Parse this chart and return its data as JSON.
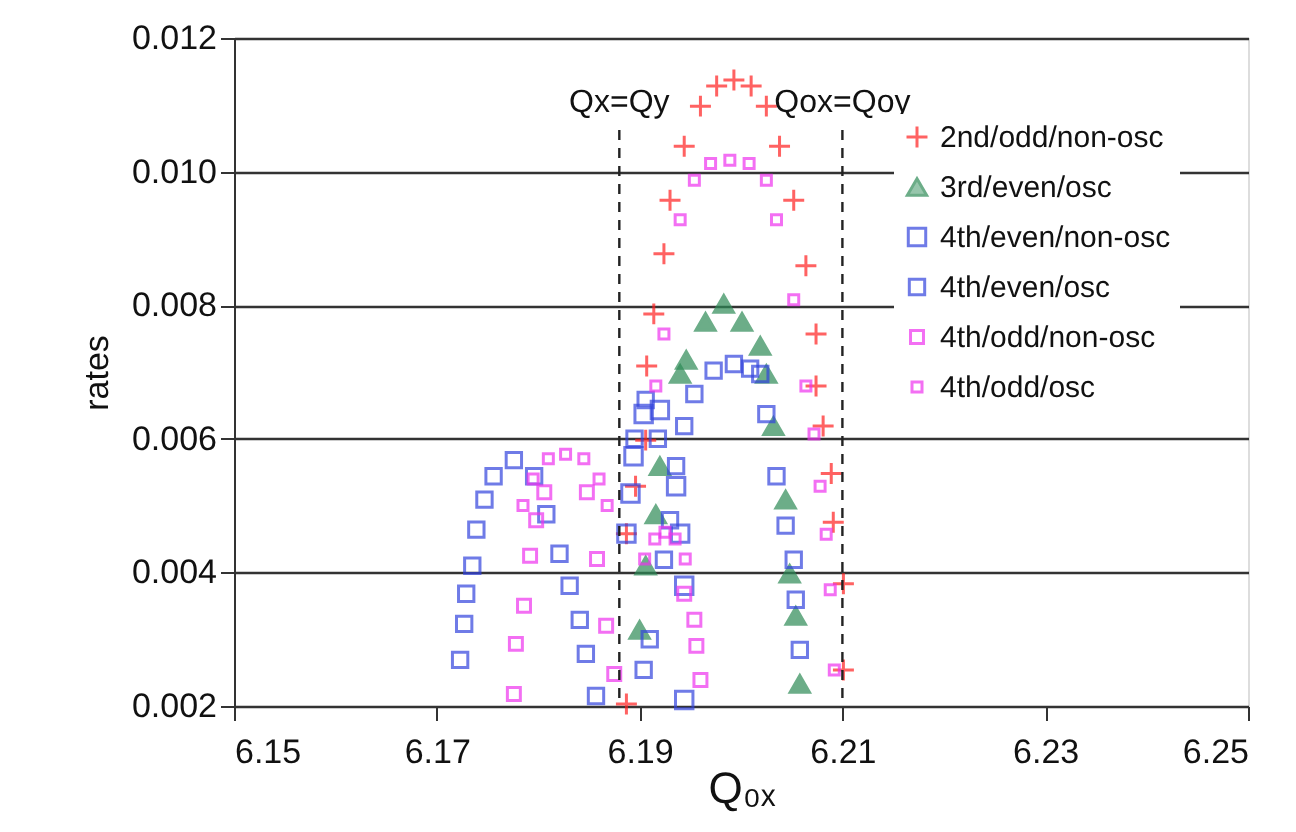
{
  "chart_data": {
    "type": "scatter",
    "xlabel": "Q₀ₓ",
    "ylabel": "rates",
    "xlim": [
      6.15,
      6.25
    ],
    "xticks": [
      6.15,
      6.17,
      6.19,
      6.21,
      6.23,
      6.25
    ],
    "ylim": [
      0.002,
      0.012
    ],
    "yticks": [
      0.002,
      0.004,
      0.006,
      0.008,
      {
        "value": 0.01,
        "label": "0.010"
      },
      0.012
    ],
    "grid": "y",
    "legend": "right",
    "ref_lines": [
      {
        "axis": "x",
        "value": 6.188,
        "label": "Qx=Qy",
        "line_style": "dashed"
      },
      {
        "axis": "x",
        "value": 6.21,
        "label": "Qox=Qoy",
        "line_style": "dashed"
      }
    ],
    "series": [
      {
        "name": "2nd/odd/non-osc",
        "color": "#ff2020",
        "marker": "cross",
        "x": [
          6.1887,
          6.1887,
          6.1896,
          6.1906,
          6.1907,
          6.1914,
          6.1924,
          6.193,
          6.1944,
          6.196,
          6.1976,
          6.1993,
          6.201,
          6.2025,
          6.2038,
          6.2052,
          6.2064,
          6.2074,
          6.2074,
          6.2081,
          6.2089,
          6.2091,
          6.2101,
          6.2101
        ],
        "values": [
          0.00203,
          0.00458,
          0.00529,
          0.00598,
          0.00709,
          0.00787,
          0.00877,
          0.00957,
          0.01038,
          0.01098,
          0.01128,
          0.01137,
          0.01128,
          0.01098,
          0.01038,
          0.00957,
          0.00859,
          0.00757,
          0.00679,
          0.00619,
          0.00548,
          0.00475,
          0.00383,
          0.00254
        ]
      },
      {
        "name": "3rd/even/osc",
        "color": "#2e8b57",
        "marker": "triangle",
        "x": [
          6.19,
          6.1906,
          6.1916,
          6.192,
          6.194,
          6.1946,
          6.1965,
          6.1983,
          6.2001,
          6.2019,
          6.2025,
          6.2032,
          6.2044,
          6.2048,
          6.2054,
          6.2058
        ],
        "values": [
          0.00314,
          0.0041,
          0.00487,
          0.00559,
          0.00697,
          0.00718,
          0.00775,
          0.00802,
          0.00775,
          0.00739,
          0.00697,
          0.00619,
          0.00509,
          0.00398,
          0.00335,
          0.00233
        ]
      },
      {
        "name": "4th/even/non-osc",
        "color": "#3344dd",
        "marker": "square",
        "x": [
          6.1887,
          6.1891,
          6.1894,
          6.1904,
          6.192,
          6.1936,
          6.194,
          6.1944,
          6.1944
        ],
        "values": [
          0.00458,
          0.00518,
          0.00574,
          0.00637,
          0.00643,
          0.00529,
          0.00458,
          0.0038,
          0.00209
        ]
      },
      {
        "name": "4th/even/osc",
        "color": "#3344dd",
        "marker": "square",
        "x": [
          6.1723,
          6.1727,
          6.1729,
          6.1735,
          6.1739,
          6.1747,
          6.1756,
          6.1776,
          6.1796,
          6.1808,
          6.1821,
          6.1831,
          6.1841,
          6.1847,
          6.1857,
          6.1895,
          6.1906,
          6.1918,
          6.1904,
          6.191,
          6.1924,
          6.193,
          6.1936,
          6.1944,
          6.1954,
          6.1973,
          6.1993,
          6.2009,
          6.2019,
          6.2025,
          6.2035,
          6.2044,
          6.2052,
          6.2054,
          6.2058
        ],
        "values": [
          0.00269,
          0.00323,
          0.00368,
          0.0041,
          0.00464,
          0.00509,
          0.00544,
          0.00568,
          0.00544,
          0.00487,
          0.00428,
          0.0038,
          0.00329,
          0.00278,
          0.00215,
          0.006,
          0.00658,
          0.006,
          0.00254,
          0.003,
          0.00419,
          0.00478,
          0.00559,
          0.00619,
          0.00667,
          0.00702,
          0.00712,
          0.00705,
          0.00697,
          0.00637,
          0.00544,
          0.0047,
          0.00419,
          0.00359,
          0.00284
        ]
      },
      {
        "name": "4th/odd/non-osc",
        "color": "#ee33ee",
        "marker": "square",
        "x": [
          6.1776,
          6.1778,
          6.1786,
          6.1792,
          6.1798,
          6.1806,
          6.1848,
          6.1858,
          6.1867,
          6.1875,
          6.1944,
          6.1954,
          6.1956,
          6.196
        ],
        "values": [
          0.00218,
          0.00293,
          0.0035,
          0.00425,
          0.00478,
          0.0052,
          0.0052,
          0.0042,
          0.0032,
          0.00248,
          0.00368,
          0.00329,
          0.0029,
          0.00239
        ]
      },
      {
        "name": "4th/odd/osc",
        "color": "#ee33ee",
        "marker": "square",
        "x": [
          6.1785,
          6.1795,
          6.181,
          6.1827,
          6.1845,
          6.186,
          6.1868,
          6.1905,
          6.1915,
          6.1925,
          6.1935,
          6.1945,
          6.1916,
          6.1924,
          6.194,
          6.1954,
          6.197,
          6.1989,
          6.2008,
          6.2025,
          6.2035,
          6.2052,
          6.2064,
          6.2072,
          6.2078,
          6.2084,
          6.2088,
          6.2092
        ],
        "values": [
          0.005,
          0.0054,
          0.0057,
          0.00577,
          0.0057,
          0.0054,
          0.005,
          0.0042,
          0.0045,
          0.0046,
          0.0045,
          0.0042,
          0.00679,
          0.00757,
          0.00928,
          0.00987,
          0.01012,
          0.01017,
          0.01012,
          0.00987,
          0.00928,
          0.00808,
          0.00679,
          0.00607,
          0.00529,
          0.00457,
          0.00374,
          0.00254
        ]
      }
    ]
  }
}
